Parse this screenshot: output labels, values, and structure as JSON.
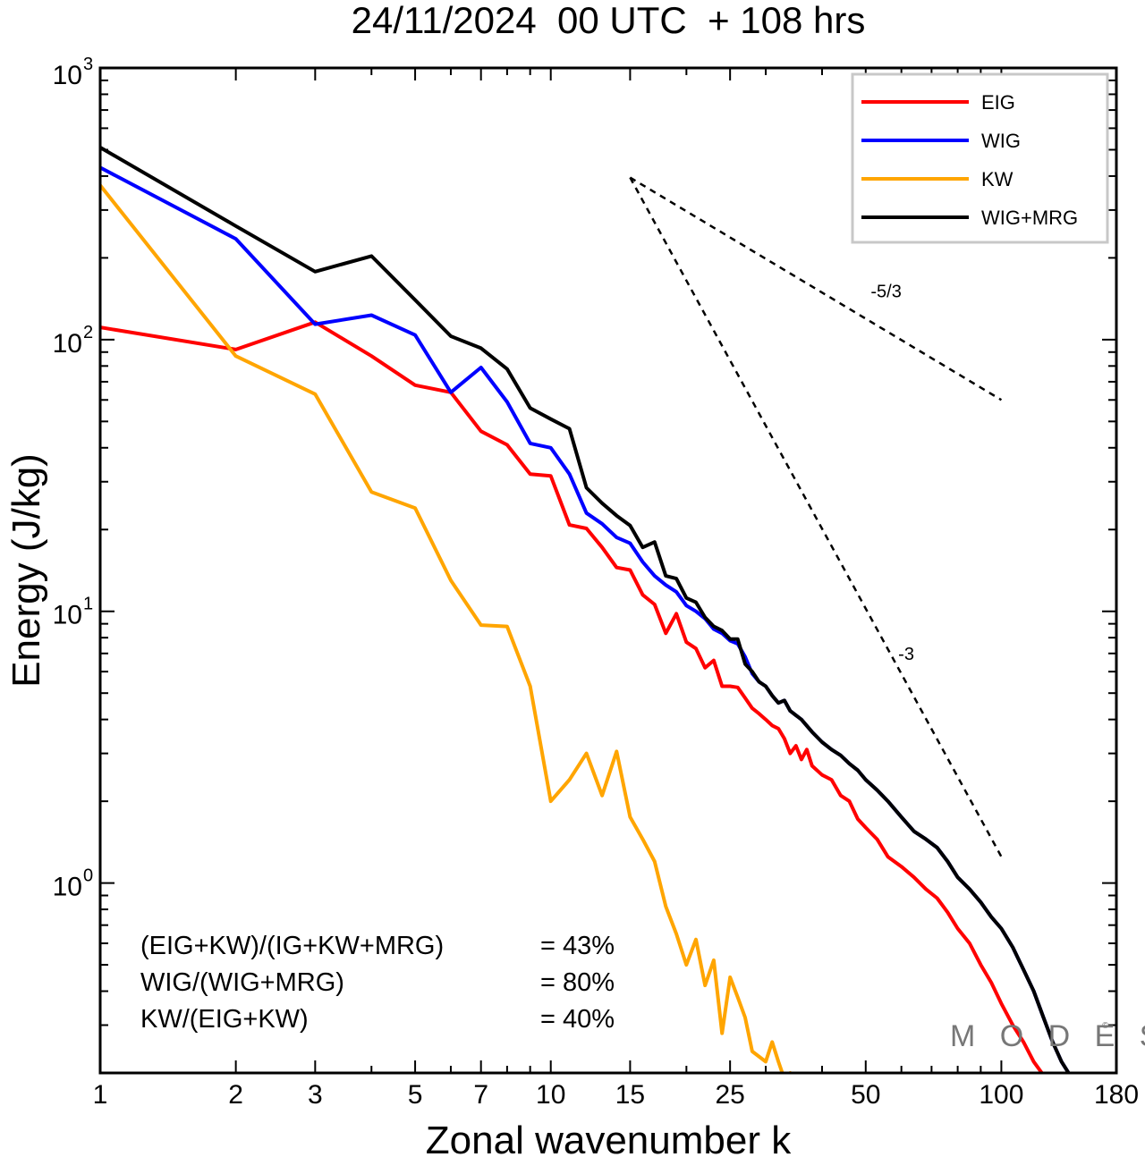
{
  "chart_data": {
    "type": "line",
    "title": "24/11/2024  00 UTC  + 108 hrs",
    "xlabel": "Zonal wavenumber k",
    "ylabel": "Energy (J/kg)",
    "xscale": "log",
    "yscale": "log",
    "xlim": [
      1,
      180
    ],
    "ylim": [
      0.2,
      1000
    ],
    "xticks": [
      1,
      2,
      3,
      5,
      7,
      10,
      15,
      25,
      50,
      100,
      180
    ],
    "xtick_labels": [
      "1",
      "2",
      "3",
      "5",
      "7",
      "10",
      "15",
      "25",
      "50",
      "100",
      "180"
    ],
    "yticks": [
      {
        "base": "10",
        "exp": "0",
        "value": 1
      },
      {
        "base": "10",
        "exp": "1",
        "value": 10
      },
      {
        "base": "10",
        "exp": "2",
        "value": 100
      },
      {
        "base": "10",
        "exp": "3",
        "value": 1000
      }
    ],
    "legend": {
      "position": "top-right"
    },
    "series": [
      {
        "name": "EIG",
        "color": "#ff0000",
        "points": [
          [
            1,
            111
          ],
          [
            2,
            92
          ],
          [
            3,
            116
          ],
          [
            4,
            87
          ],
          [
            5,
            68
          ],
          [
            6,
            64
          ],
          [
            7,
            46
          ],
          [
            8,
            41
          ],
          [
            9,
            32
          ],
          [
            10,
            31.5
          ],
          [
            11,
            20.8
          ],
          [
            12,
            20.2
          ],
          [
            13,
            17.2
          ],
          [
            14,
            14.5
          ],
          [
            15,
            14.2
          ],
          [
            16,
            11.5
          ],
          [
            17,
            10.6
          ],
          [
            18,
            8.3
          ],
          [
            19,
            9.8
          ],
          [
            20,
            7.7
          ],
          [
            21,
            7.3
          ],
          [
            22,
            6.2
          ],
          [
            23,
            6.6
          ],
          [
            24,
            5.3
          ],
          [
            25,
            5.3
          ],
          [
            26,
            5.25
          ],
          [
            27,
            4.8
          ],
          [
            28,
            4.4
          ],
          [
            29,
            4.2
          ],
          [
            30,
            4.0
          ],
          [
            31,
            3.8
          ],
          [
            32,
            3.7
          ],
          [
            33,
            3.4
          ],
          [
            34,
            3.0
          ],
          [
            35,
            3.2
          ],
          [
            36,
            2.85
          ],
          [
            37,
            3.1
          ],
          [
            38,
            2.7
          ],
          [
            40,
            2.5
          ],
          [
            42,
            2.4
          ],
          [
            44,
            2.1
          ],
          [
            46,
            2.0
          ],
          [
            48,
            1.72
          ],
          [
            50,
            1.6
          ],
          [
            53,
            1.45
          ],
          [
            56,
            1.25
          ],
          [
            60,
            1.15
          ],
          [
            64,
            1.05
          ],
          [
            68,
            0.95
          ],
          [
            72,
            0.88
          ],
          [
            76,
            0.78
          ],
          [
            80,
            0.68
          ],
          [
            85,
            0.6
          ],
          [
            90,
            0.5
          ],
          [
            95,
            0.43
          ],
          [
            100,
            0.36
          ],
          [
            106,
            0.3
          ],
          [
            112,
            0.26
          ],
          [
            118,
            0.22
          ],
          [
            123,
            0.2
          ]
        ]
      },
      {
        "name": "WIG",
        "color": "#0000ff",
        "points": [
          [
            1,
            430
          ],
          [
            2,
            235
          ],
          [
            3,
            114
          ],
          [
            4,
            123
          ],
          [
            5,
            104
          ],
          [
            6,
            64
          ],
          [
            7,
            79
          ],
          [
            8,
            59
          ],
          [
            9,
            41.5
          ],
          [
            10,
            40
          ],
          [
            11,
            32
          ],
          [
            12,
            23
          ],
          [
            13,
            21
          ],
          [
            14,
            18.7
          ],
          [
            15,
            17.8
          ],
          [
            16,
            15.2
          ],
          [
            17,
            13.5
          ],
          [
            18,
            12.5
          ],
          [
            19,
            11.8
          ],
          [
            20,
            10.5
          ],
          [
            21,
            10.0
          ],
          [
            22,
            9.4
          ],
          [
            23,
            8.6
          ],
          [
            24,
            8.3
          ],
          [
            25,
            7.8
          ],
          [
            26,
            7.6
          ],
          [
            27,
            6.8
          ],
          [
            28,
            5.9
          ],
          [
            29,
            5.5
          ],
          [
            30,
            5.3
          ],
          [
            31,
            4.9
          ],
          [
            32,
            4.6
          ],
          [
            33,
            4.7
          ],
          [
            34,
            4.3
          ],
          [
            36,
            4.0
          ],
          [
            38,
            3.6
          ],
          [
            40,
            3.3
          ],
          [
            42,
            3.1
          ],
          [
            44,
            2.95
          ],
          [
            46,
            2.75
          ],
          [
            48,
            2.6
          ],
          [
            50,
            2.4
          ],
          [
            53,
            2.2
          ],
          [
            56,
            2.0
          ],
          [
            60,
            1.75
          ],
          [
            64,
            1.55
          ],
          [
            68,
            1.45
          ],
          [
            72,
            1.35
          ],
          [
            76,
            1.2
          ],
          [
            80,
            1.05
          ],
          [
            85,
            0.95
          ],
          [
            90,
            0.85
          ],
          [
            95,
            0.75
          ],
          [
            100,
            0.68
          ],
          [
            106,
            0.58
          ],
          [
            112,
            0.48
          ],
          [
            118,
            0.4
          ],
          [
            124,
            0.32
          ],
          [
            130,
            0.26
          ],
          [
            136,
            0.22
          ],
          [
            141,
            0.2
          ]
        ]
      },
      {
        "name": "KW",
        "color": "#ffa500",
        "points": [
          [
            1,
            370
          ],
          [
            2,
            87
          ],
          [
            3,
            63
          ],
          [
            4,
            27.5
          ],
          [
            5,
            24
          ],
          [
            6,
            13
          ],
          [
            7,
            8.9
          ],
          [
            8,
            8.8
          ],
          [
            9,
            5.3
          ],
          [
            10,
            2.0
          ],
          [
            11,
            2.4
          ],
          [
            12,
            3.0
          ],
          [
            13,
            2.1
          ],
          [
            14,
            3.05
          ],
          [
            15,
            1.75
          ],
          [
            16,
            1.45
          ],
          [
            17,
            1.2
          ],
          [
            18,
            0.82
          ],
          [
            19,
            0.65
          ],
          [
            20,
            0.5
          ],
          [
            21,
            0.62
          ],
          [
            22,
            0.42
          ],
          [
            23,
            0.52
          ],
          [
            24,
            0.28
          ],
          [
            25,
            0.45
          ],
          [
            26,
            0.38
          ],
          [
            27,
            0.32
          ],
          [
            28,
            0.24
          ],
          [
            30,
            0.22
          ],
          [
            31,
            0.26
          ],
          [
            32,
            0.22
          ],
          [
            33,
            0.19
          ],
          [
            34,
            0.2
          ],
          [
            35,
            0.18
          ]
        ]
      },
      {
        "name": "WIG+MRG",
        "color": "#000000",
        "points": [
          [
            1,
            510
          ],
          [
            2,
            262
          ],
          [
            3,
            178
          ],
          [
            4,
            203
          ],
          [
            5,
            140
          ],
          [
            6,
            103
          ],
          [
            7,
            93
          ],
          [
            8,
            78
          ],
          [
            9,
            56
          ],
          [
            10,
            51
          ],
          [
            11,
            47
          ],
          [
            12,
            28.5
          ],
          [
            13,
            25
          ],
          [
            14,
            22.5
          ],
          [
            15,
            20.7
          ],
          [
            16,
            17.2
          ],
          [
            17,
            18.0
          ],
          [
            18,
            13.5
          ],
          [
            19,
            13.2
          ],
          [
            20,
            11.2
          ],
          [
            21,
            10.8
          ],
          [
            22,
            9.5
          ],
          [
            23,
            8.8
          ],
          [
            24,
            8.5
          ],
          [
            25,
            7.9
          ],
          [
            26,
            7.9
          ],
          [
            27,
            6.4
          ],
          [
            28,
            6.0
          ],
          [
            29,
            5.5
          ],
          [
            30,
            5.3
          ],
          [
            31,
            4.9
          ],
          [
            32,
            4.6
          ],
          [
            33,
            4.7
          ],
          [
            34,
            4.3
          ],
          [
            36,
            4.0
          ],
          [
            38,
            3.6
          ],
          [
            40,
            3.3
          ],
          [
            42,
            3.1
          ],
          [
            44,
            2.95
          ],
          [
            46,
            2.75
          ],
          [
            48,
            2.6
          ],
          [
            50,
            2.4
          ],
          [
            53,
            2.2
          ],
          [
            56,
            2.0
          ],
          [
            60,
            1.75
          ],
          [
            64,
            1.55
          ],
          [
            68,
            1.45
          ],
          [
            72,
            1.35
          ],
          [
            76,
            1.2
          ],
          [
            80,
            1.05
          ],
          [
            85,
            0.95
          ],
          [
            90,
            0.85
          ],
          [
            95,
            0.75
          ],
          [
            100,
            0.68
          ],
          [
            106,
            0.58
          ],
          [
            112,
            0.48
          ],
          [
            118,
            0.4
          ],
          [
            124,
            0.32
          ],
          [
            130,
            0.26
          ],
          [
            136,
            0.22
          ],
          [
            141,
            0.2
          ]
        ]
      }
    ],
    "reference_lines": [
      {
        "label": "-5/3",
        "from": [
          15,
          395
        ],
        "to": [
          100,
          60
        ]
      },
      {
        "label": "-3",
        "from": [
          15,
          395
        ],
        "to": [
          100,
          1.25
        ]
      }
    ],
    "annotations": [
      {
        "label": "(EIG+KW)/(IG+KW+MRG)",
        "value": "= 43%"
      },
      {
        "label": "WIG/(WIG+MRG)",
        "value": "= 80%"
      },
      {
        "label": "KW/(EIG+KW)",
        "value": "= 40%"
      }
    ],
    "watermark": "M O D E S",
    "watermark_mark": "©"
  }
}
